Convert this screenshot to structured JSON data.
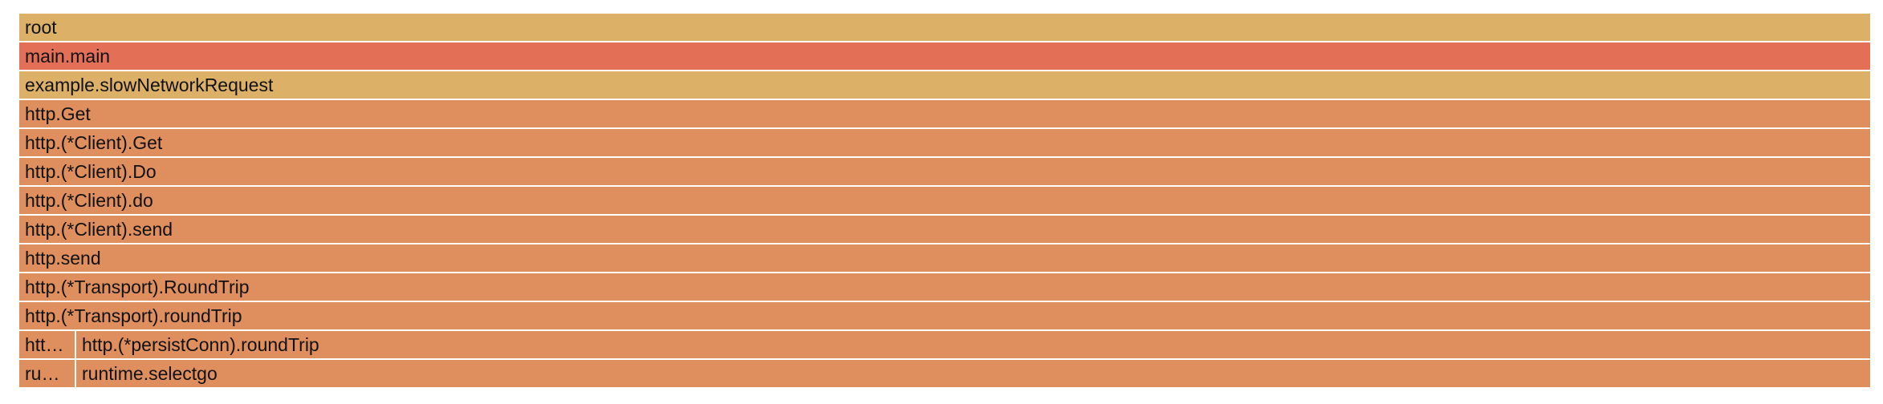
{
  "colors": {
    "root": "#dcb066",
    "main": "#e37056",
    "example": "#dcb066",
    "http": "#df8f5d"
  },
  "frames": [
    {
      "label": "root",
      "color": "root"
    },
    {
      "label": "main.main",
      "color": "main"
    },
    {
      "label": "example.slowNetworkRequest",
      "color": "example"
    },
    {
      "label": "http.Get",
      "color": "http"
    },
    {
      "label": "http.(*Client).Get",
      "color": "http"
    },
    {
      "label": "http.(*Client).Do",
      "color": "http"
    },
    {
      "label": "http.(*Client).do",
      "color": "http"
    },
    {
      "label": "http.(*Client).send",
      "color": "http"
    },
    {
      "label": "http.send",
      "color": "http"
    },
    {
      "label": "http.(*Transport).RoundTrip",
      "color": "http"
    },
    {
      "label": "http.(*Transport).roundTrip",
      "color": "http"
    }
  ],
  "split_rows": [
    {
      "left": {
        "label": "htt…",
        "color": "http"
      },
      "right": {
        "label": "http.(*persistConn).roundTrip",
        "color": "http"
      }
    },
    {
      "left": {
        "label": "ru…",
        "color": "http"
      },
      "right": {
        "label": "runtime.selectgo",
        "color": "http"
      }
    }
  ]
}
